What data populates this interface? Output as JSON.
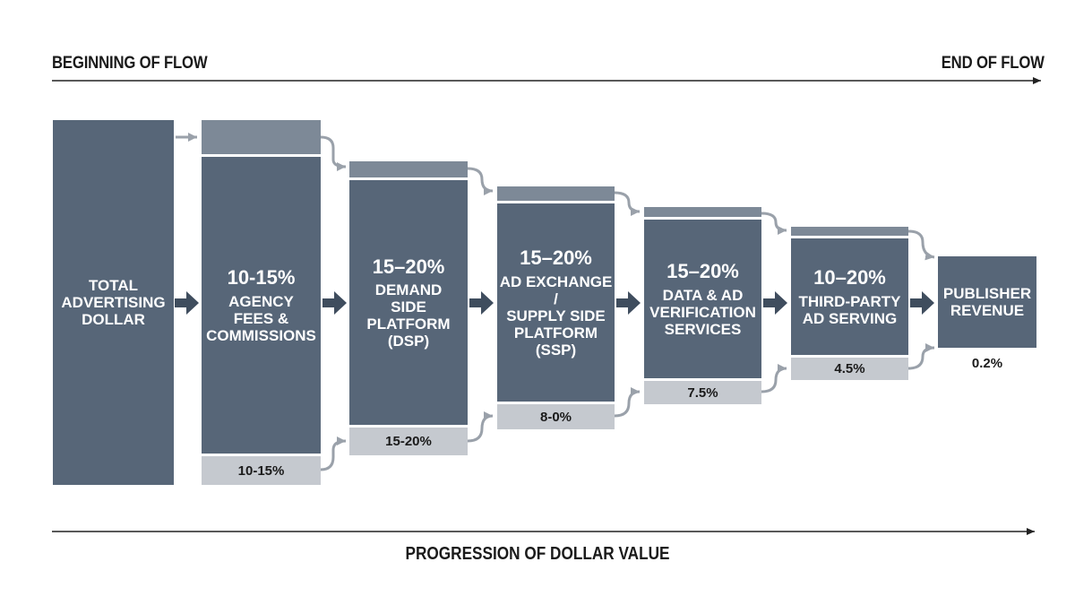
{
  "header": {
    "begin": "BEGINNING OF FLOW",
    "end": "END OF FLOW"
  },
  "footer": {
    "label": "PROGRESSION OF DOLLAR VALUE"
  },
  "stages": [
    {
      "id": "total",
      "percent": "",
      "label": "TOTAL\nADVERTISING\nDOLLAR",
      "retained": ""
    },
    {
      "id": "agency",
      "percent": "10-15%",
      "label": "AGENCY\nFEES &\nCOMMISSIONS",
      "retained": "10-15%"
    },
    {
      "id": "dsp",
      "percent": "15–20%",
      "label": "DEMAND\nSIDE\nPLATFORM\n(DSP)",
      "retained": "15-20%"
    },
    {
      "id": "ssp",
      "percent": "15–20%",
      "label": "AD EXCHANGE /\nSUPPLY SIDE\nPLATFORM\n(SSP)",
      "retained": "8-0%"
    },
    {
      "id": "verification",
      "percent": "15–20%",
      "label": "DATA & AD\nVERIFICATION\nSERVICES",
      "retained": "7.5%"
    },
    {
      "id": "adserving",
      "percent": "10–20%",
      "label": "THIRD-PARTY\nAD SERVING",
      "retained": "4.5%"
    },
    {
      "id": "publisher",
      "percent": "",
      "label": "PUBLISHER\nREVENUE",
      "retained": "0.2%"
    }
  ],
  "colors": {
    "block": "#576678",
    "cap": "#7d8997",
    "retained": "#c5c9cf",
    "connector": "#9aa1aa",
    "main_arrow": "#3f4d5e",
    "axis": "#222222"
  }
}
